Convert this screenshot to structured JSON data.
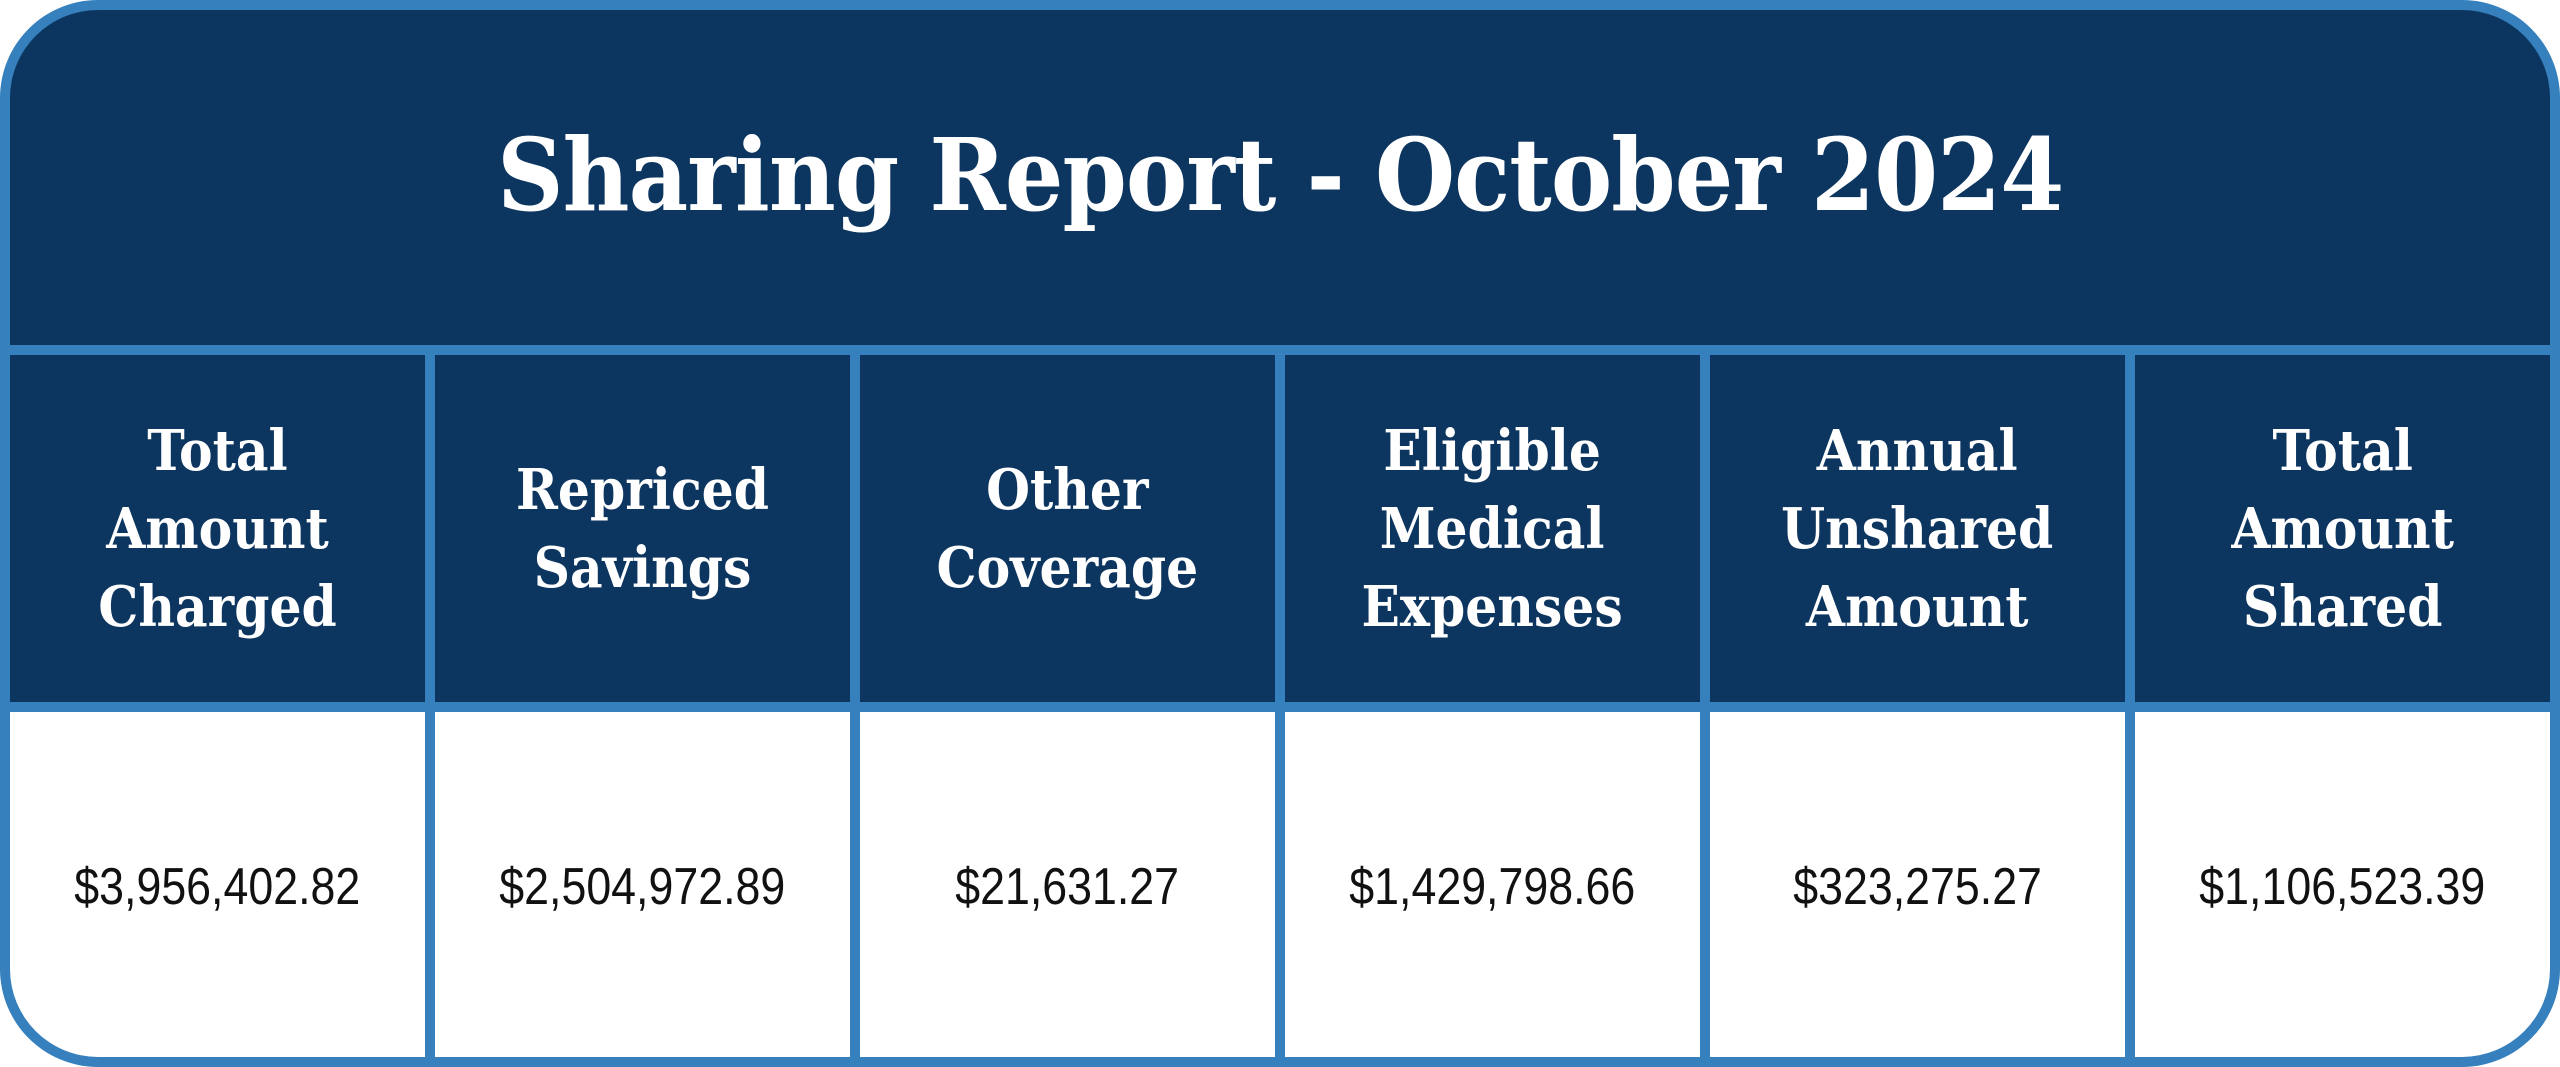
{
  "report": {
    "title": "Sharing Report - October 2024",
    "colors": {
      "navy": "#0c355f",
      "border_blue": "#3580bd",
      "value_background": "#ffffff",
      "value_text": "#111111",
      "header_text": "#ffffff"
    },
    "columns": [
      {
        "header": "Total\nAmount\nCharged",
        "value": "$3,956,402.82"
      },
      {
        "header": "Repriced\nSavings",
        "value": "$2,504,972.89"
      },
      {
        "header": "Other\nCoverage",
        "value": "$21,631.27"
      },
      {
        "header": "Eligible\nMedical\nExpenses",
        "value": "$1,429,798.66"
      },
      {
        "header": "Annual\nUnshared\nAmount",
        "value": "$323,275.27"
      },
      {
        "header": "Total\nAmount\nShared",
        "value": "$1,106,523.39"
      }
    ]
  },
  "chart_data": {
    "type": "table",
    "title": "Sharing Report - October 2024",
    "columns": [
      "Total Amount Charged",
      "Repriced Savings",
      "Other Coverage",
      "Eligible Medical Expenses",
      "Annual Unshared Amount",
      "Total Amount Shared"
    ],
    "rows": [
      [
        "$3,956,402.82",
        "$2,504,972.89",
        "$21,631.27",
        "$1,429,798.66",
        "$323,275.27",
        "$1,106,523.39"
      ]
    ],
    "values": [
      3956402.82,
      2504972.89,
      21631.27,
      1429798.66,
      323275.27,
      1106523.39
    ]
  }
}
